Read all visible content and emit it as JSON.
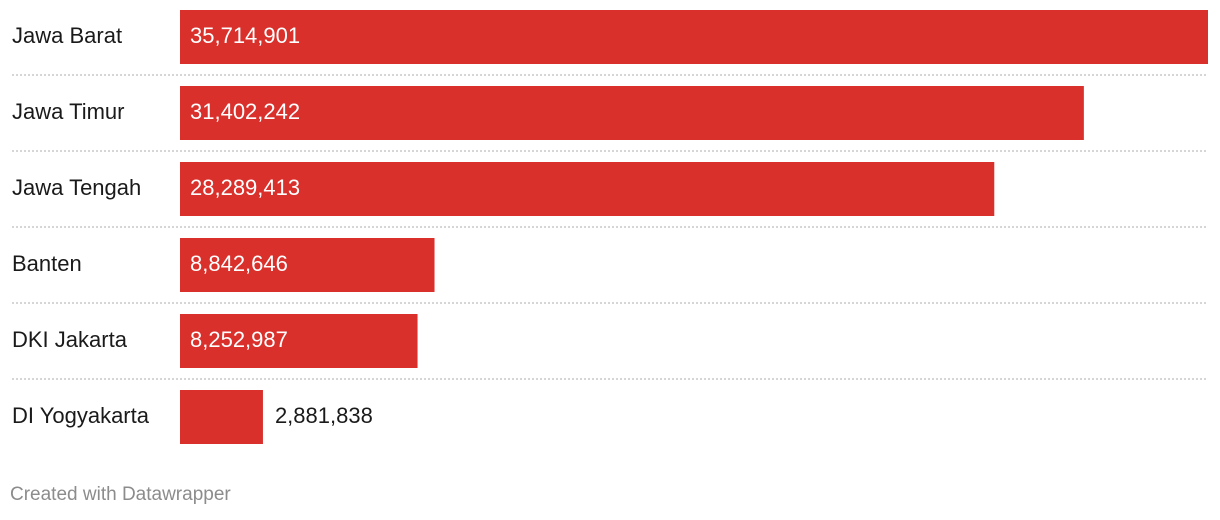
{
  "chart_data": {
    "type": "bar",
    "orientation": "horizontal",
    "categories": [
      "Jawa Barat",
      "Jawa Timur",
      "Jawa Tengah",
      "Banten",
      "DKI Jakarta",
      "DI Yogyakarta"
    ],
    "values": [
      35714901,
      31402242,
      28289413,
      8842646,
      8252987,
      2881838
    ],
    "value_labels": [
      "35,714,901",
      "31,402,242",
      "28,289,413",
      "8,842,646",
      "8,252,987",
      "2,881,838"
    ],
    "xlim": [
      0,
      35714901
    ],
    "grid": false,
    "colors": {
      "bar": "#d9302c",
      "label_inside": "#ffffff",
      "label_outside": "#1a1a1a"
    }
  },
  "footer": {
    "credit": "Created with Datawrapper"
  }
}
